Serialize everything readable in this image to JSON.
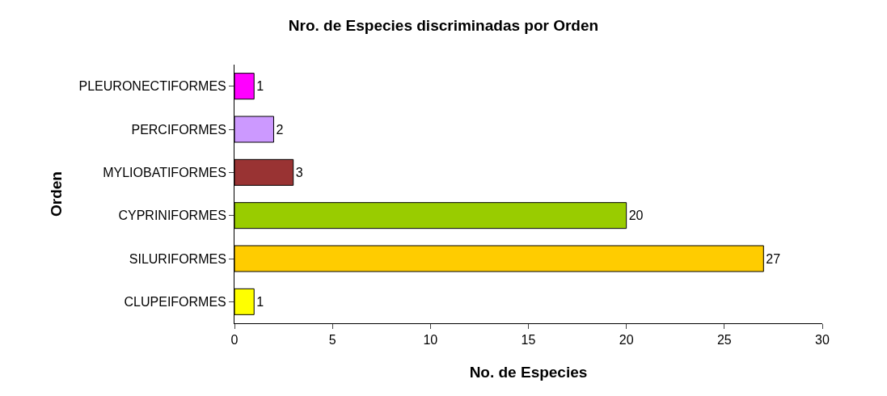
{
  "chart_data": {
    "type": "bar",
    "orientation": "horizontal",
    "title": "Nro. de Especies discriminadas por Orden",
    "xlabel": "No. de Especies",
    "ylabel": "Orden",
    "categories": [
      "PLEURONECTIFORMES",
      "PERCIFORMES",
      "MYLIOBATIFORMES",
      "CYPRINIFORMES",
      "SILURIFORMES",
      "CLUPEIFORMES"
    ],
    "values": [
      1,
      2,
      3,
      20,
      27,
      1
    ],
    "colors": [
      "#ff00ff",
      "#cc99ff",
      "#993333",
      "#99cc00",
      "#ffcc00",
      "#ffff00"
    ],
    "xlim": [
      0,
      30
    ],
    "xticks": [
      0,
      5,
      10,
      15,
      20,
      25,
      30
    ],
    "data_labels": true
  }
}
